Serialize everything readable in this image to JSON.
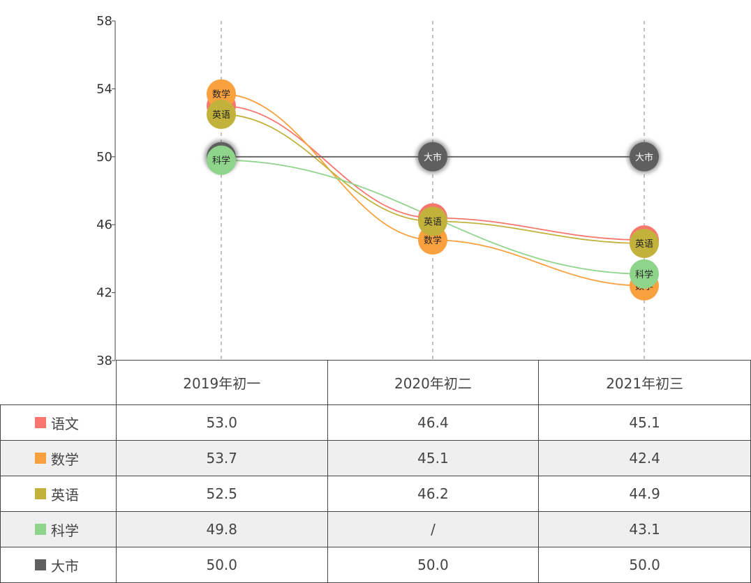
{
  "chart_data": {
    "type": "line",
    "categories": [
      "2019年初一",
      "2020年初二",
      "2021年初三"
    ],
    "ylim": [
      38,
      58
    ],
    "yticks": [
      38,
      42,
      46,
      50,
      54,
      58
    ],
    "grid": "vertical dashed lines at categories",
    "legend": "table below chart",
    "series": [
      {
        "name": "语文",
        "color": "#f8766d",
        "values": [
          53.0,
          46.4,
          45.1
        ],
        "display": [
          "53.0",
          "46.4",
          "45.1"
        ]
      },
      {
        "name": "数学",
        "color": "#f9a03f",
        "values": [
          53.7,
          45.1,
          42.4
        ],
        "display": [
          "53.7",
          "45.1",
          "42.4"
        ]
      },
      {
        "name": "英语",
        "color": "#c2b23c",
        "values": [
          52.5,
          46.2,
          44.9
        ],
        "display": [
          "52.5",
          "46.2",
          "44.9"
        ]
      },
      {
        "name": "科学",
        "color": "#8ed48a",
        "values": [
          49.8,
          null,
          43.1
        ],
        "display": [
          "49.8",
          "/",
          "43.1"
        ]
      },
      {
        "name": "大市",
        "color": "#5f5f5f",
        "values": [
          50.0,
          50.0,
          50.0
        ],
        "display": [
          "50.0",
          "50.0",
          "50.0"
        ]
      }
    ]
  }
}
